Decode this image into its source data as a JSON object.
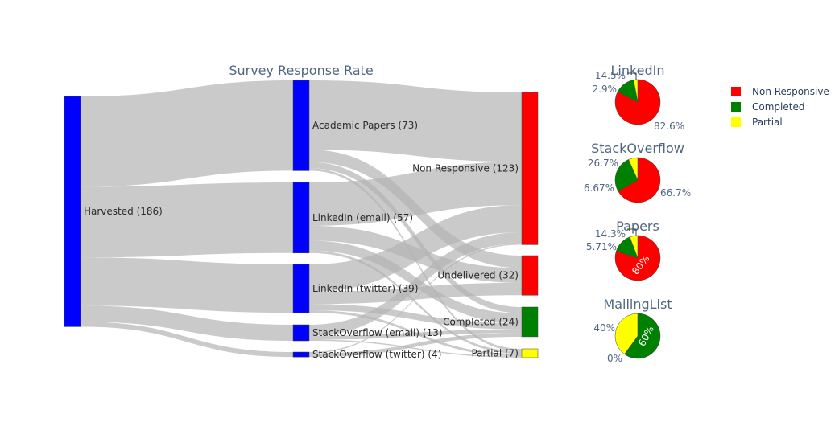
{
  "chart_data": [
    {
      "type": "sankey",
      "title": "Survey Response Rate",
      "nodes": [
        {
          "id": "harvested",
          "label": "Harvested (186)",
          "value": 186,
          "color": "#0000ff"
        },
        {
          "id": "academic",
          "label": "Academic Papers (73)",
          "value": 73,
          "color": "#0000ff"
        },
        {
          "id": "li_email",
          "label": "LinkedIn (email) (57)",
          "value": 57,
          "color": "#0000ff"
        },
        {
          "id": "li_twitter",
          "label": "LinkedIn (twitter) (39)",
          "value": 39,
          "color": "#0000ff"
        },
        {
          "id": "so_email",
          "label": "StackOverflow (email) (13)",
          "value": 13,
          "color": "#0000ff"
        },
        {
          "id": "so_twitter",
          "label": "StackOverflow (twitter) (4)",
          "value": 4,
          "color": "#0000ff"
        },
        {
          "id": "nonresp",
          "label": "Non Responsive (123)",
          "value": 123,
          "color": "#ff0000"
        },
        {
          "id": "undeliv",
          "label": "Undelivered (32)",
          "value": 32,
          "color": "#ff0000"
        },
        {
          "id": "completed",
          "label": "Completed (24)",
          "value": 24,
          "color": "#008000"
        },
        {
          "id": "partial",
          "label": "Partial (7)",
          "value": 7,
          "color": "#ffff00"
        }
      ],
      "links": [
        {
          "source": "harvested",
          "target": "academic",
          "value": 73
        },
        {
          "source": "harvested",
          "target": "li_email",
          "value": 57
        },
        {
          "source": "harvested",
          "target": "li_twitter",
          "value": 39
        },
        {
          "source": "harvested",
          "target": "so_email",
          "value": 13
        },
        {
          "source": "harvested",
          "target": "so_twitter",
          "value": 4
        },
        {
          "source": "academic",
          "target": "nonresp",
          "value": 56
        },
        {
          "source": "academic",
          "target": "undeliv",
          "value": 10
        },
        {
          "source": "academic",
          "target": "completed",
          "value": 5
        },
        {
          "source": "academic",
          "target": "partial",
          "value": 2
        },
        {
          "source": "li_email",
          "target": "nonresp",
          "value": 35
        },
        {
          "source": "li_email",
          "target": "undeliv",
          "value": 12
        },
        {
          "source": "li_email",
          "target": "completed",
          "value": 8
        },
        {
          "source": "li_email",
          "target": "partial",
          "value": 2
        },
        {
          "source": "li_twitter",
          "target": "nonresp",
          "value": 22
        },
        {
          "source": "li_twitter",
          "target": "undeliv",
          "value": 10
        },
        {
          "source": "li_twitter",
          "target": "completed",
          "value": 5
        },
        {
          "source": "li_twitter",
          "target": "partial",
          "value": 2
        },
        {
          "source": "so_email",
          "target": "nonresp",
          "value": 9
        },
        {
          "source": "so_email",
          "target": "completed",
          "value": 3
        },
        {
          "source": "so_email",
          "target": "partial",
          "value": 1
        },
        {
          "source": "so_twitter",
          "target": "nonresp",
          "value": 1
        },
        {
          "source": "so_twitter",
          "target": "completed",
          "value": 3
        }
      ]
    },
    {
      "type": "pie",
      "title": "LinkedIn",
      "slices": [
        {
          "label": "Non Responsive",
          "value": 82.6,
          "text": "82.6%",
          "color": "#ff0000"
        },
        {
          "label": "Completed",
          "value": 14.5,
          "text": "14.5%",
          "color": "#008000"
        },
        {
          "label": "Partial",
          "value": 2.9,
          "text": "2.9%",
          "color": "#ffff00"
        }
      ]
    },
    {
      "type": "pie",
      "title": "StackOverflow",
      "slices": [
        {
          "label": "Non Responsive",
          "value": 66.7,
          "text": "66.7%",
          "color": "#ff0000"
        },
        {
          "label": "Completed",
          "value": 26.7,
          "text": "26.7%",
          "color": "#008000"
        },
        {
          "label": "Partial",
          "value": 6.67,
          "text": "6.67%",
          "color": "#ffff00"
        }
      ]
    },
    {
      "type": "pie",
      "title": "Papers",
      "slices": [
        {
          "label": "Non Responsive",
          "value": 80,
          "text": "80%",
          "color": "#ff0000"
        },
        {
          "label": "Completed",
          "value": 14.3,
          "text": "14.3%",
          "color": "#008000"
        },
        {
          "label": "Partial",
          "value": 5.71,
          "text": "5.71%",
          "color": "#ffff00"
        }
      ]
    },
    {
      "type": "pie",
      "title": "MailingList",
      "slices": [
        {
          "label": "Non Responsive",
          "value": 0,
          "text": "0%",
          "color": "#ff0000"
        },
        {
          "label": "Completed",
          "value": 60,
          "text": "60%",
          "color": "#008000"
        },
        {
          "label": "Partial",
          "value": 40,
          "text": "40%",
          "color": "#ffff00"
        }
      ]
    }
  ],
  "legend": {
    "placement": "top-right",
    "items": [
      {
        "label": "Non Responsive",
        "color": "#ff0000"
      },
      {
        "label": "Completed",
        "color": "#008000"
      },
      {
        "label": "Partial",
        "color": "#ffff00"
      }
    ]
  }
}
